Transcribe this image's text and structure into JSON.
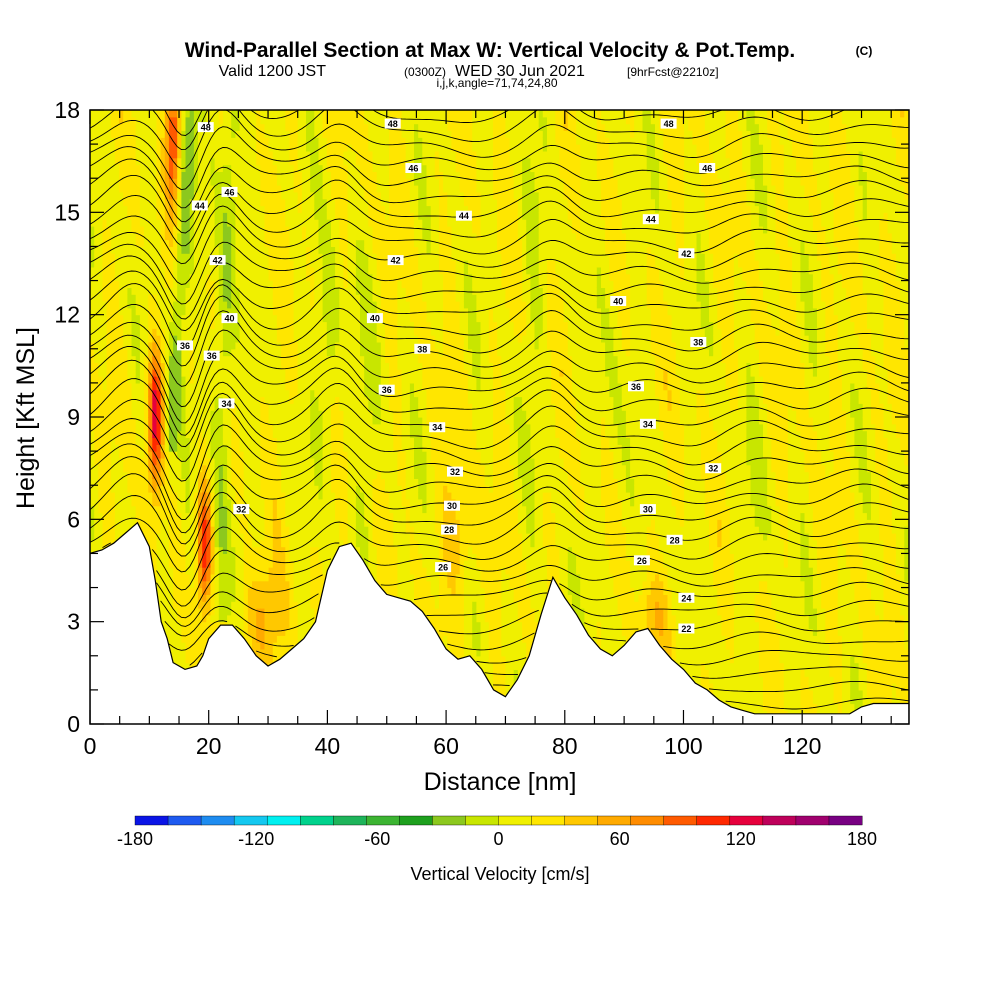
{
  "header": {
    "title": "Wind-Parallel Section at Max W: Vertical Velocity & Pot.Temp.",
    "copyright": "(C)",
    "valid_prefix": "Valid 1200 JST",
    "valid_utc": "(0300Z)",
    "valid_date": "WED 30 Jun 2021",
    "forecast": "[9hrFcst@2210z]",
    "indices": "i,j,k,angle=71,74,24,80"
  },
  "chart_data": {
    "type": "heatmap",
    "xlabel": "Distance [nm]",
    "ylabel": "Height [Kft MSL]",
    "xlim": [
      0,
      138
    ],
    "ylim": [
      0,
      18
    ],
    "x_ticks": [
      0,
      20,
      40,
      60,
      80,
      100,
      120
    ],
    "y_ticks": [
      0,
      3,
      6,
      9,
      12,
      15,
      18
    ],
    "x_minor_step": 5,
    "y_minor_step": 1,
    "colorbar": {
      "label": "Vertical Velocity [cm/s]",
      "range": [
        -180,
        180
      ],
      "ticks": [
        -180,
        -120,
        -60,
        0,
        60,
        120,
        180
      ],
      "colors": [
        "#0a14e6",
        "#1e5af0",
        "#1e8cf0",
        "#14c8f0",
        "#00f0f0",
        "#00d28c",
        "#1eb45a",
        "#3cb432",
        "#1ea01e",
        "#8cc81e",
        "#c8e600",
        "#f0f000",
        "#ffe600",
        "#ffc800",
        "#ffaa00",
        "#ff8c00",
        "#ff5a00",
        "#ff2800",
        "#e6003c",
        "#be005a",
        "#a0006e",
        "#780082"
      ]
    },
    "terrain_profile": [
      [
        0,
        5.0
      ],
      [
        2,
        5.1
      ],
      [
        4,
        5.3
      ],
      [
        6,
        5.6
      ],
      [
        8,
        5.9
      ],
      [
        10,
        5.2
      ],
      [
        11,
        4.2
      ],
      [
        12,
        3.0
      ],
      [
        13,
        2.5
      ],
      [
        14,
        1.8
      ],
      [
        16,
        1.6
      ],
      [
        18,
        1.7
      ],
      [
        19,
        2.0
      ],
      [
        20,
        2.5
      ],
      [
        22,
        2.9
      ],
      [
        24,
        2.9
      ],
      [
        26,
        2.5
      ],
      [
        28,
        2.0
      ],
      [
        30,
        1.7
      ],
      [
        32,
        1.9
      ],
      [
        34,
        2.2
      ],
      [
        36,
        2.5
      ],
      [
        38,
        3.0
      ],
      [
        40,
        4.5
      ],
      [
        42,
        5.2
      ],
      [
        44,
        5.3
      ],
      [
        46,
        4.8
      ],
      [
        48,
        4.2
      ],
      [
        50,
        3.8
      ],
      [
        52,
        3.7
      ],
      [
        54,
        3.6
      ],
      [
        56,
        3.3
      ],
      [
        58,
        2.8
      ],
      [
        60,
        2.2
      ],
      [
        62,
        1.9
      ],
      [
        64,
        2.0
      ],
      [
        66,
        1.6
      ],
      [
        68,
        1.0
      ],
      [
        70,
        0.8
      ],
      [
        72,
        1.3
      ],
      [
        74,
        2.0
      ],
      [
        76,
        3.2
      ],
      [
        78,
        4.3
      ],
      [
        80,
        3.7
      ],
      [
        82,
        3.2
      ],
      [
        84,
        2.6
      ],
      [
        86,
        2.2
      ],
      [
        88,
        2.0
      ],
      [
        90,
        2.3
      ],
      [
        92,
        2.7
      ],
      [
        94,
        2.8
      ],
      [
        96,
        2.3
      ],
      [
        98,
        1.9
      ],
      [
        100,
        1.6
      ],
      [
        102,
        1.2
      ],
      [
        104,
        1.0
      ],
      [
        106,
        0.7
      ],
      [
        108,
        0.5
      ],
      [
        110,
        0.4
      ],
      [
        112,
        0.3
      ],
      [
        120,
        0.3
      ],
      [
        128,
        0.3
      ],
      [
        130,
        0.5
      ],
      [
        132,
        0.6
      ],
      [
        138,
        0.6
      ]
    ],
    "theta_contour_labels": [
      {
        "text": "22",
        "x": 100.5,
        "y": 2.8
      },
      {
        "text": "24",
        "x": 100.5,
        "y": 3.7
      },
      {
        "text": "26",
        "x": 59.5,
        "y": 4.6
      },
      {
        "text": "26",
        "x": 93.0,
        "y": 4.8
      },
      {
        "text": "28",
        "x": 60.5,
        "y": 5.7
      },
      {
        "text": "28",
        "x": 98.5,
        "y": 5.4
      },
      {
        "text": "30",
        "x": 61.0,
        "y": 6.4
      },
      {
        "text": "30",
        "x": 94.0,
        "y": 6.3
      },
      {
        "text": "32",
        "x": 25.5,
        "y": 6.3
      },
      {
        "text": "32",
        "x": 61.5,
        "y": 7.4
      },
      {
        "text": "32",
        "x": 105.0,
        "y": 7.5
      },
      {
        "text": "34",
        "x": 23.0,
        "y": 9.4
      },
      {
        "text": "34",
        "x": 58.5,
        "y": 8.7
      },
      {
        "text": "34",
        "x": 94.0,
        "y": 8.8
      },
      {
        "text": "36",
        "x": 16.0,
        "y": 11.1
      },
      {
        "text": "36",
        "x": 20.5,
        "y": 10.8
      },
      {
        "text": "36",
        "x": 50.0,
        "y": 9.8
      },
      {
        "text": "36",
        "x": 92.0,
        "y": 9.9
      },
      {
        "text": "38",
        "x": 56.0,
        "y": 11.0
      },
      {
        "text": "38",
        "x": 102.5,
        "y": 11.2
      },
      {
        "text": "40",
        "x": 23.5,
        "y": 11.9
      },
      {
        "text": "40",
        "x": 48.0,
        "y": 11.9
      },
      {
        "text": "40",
        "x": 89.0,
        "y": 12.4
      },
      {
        "text": "42",
        "x": 21.5,
        "y": 13.6
      },
      {
        "text": "42",
        "x": 51.5,
        "y": 13.6
      },
      {
        "text": "42",
        "x": 100.5,
        "y": 13.8
      },
      {
        "text": "44",
        "x": 18.5,
        "y": 15.2
      },
      {
        "text": "44",
        "x": 63.0,
        "y": 14.9
      },
      {
        "text": "44",
        "x": 94.5,
        "y": 14.8
      },
      {
        "text": "46",
        "x": 23.5,
        "y": 15.6
      },
      {
        "text": "46",
        "x": 54.5,
        "y": 16.3
      },
      {
        "text": "46",
        "x": 104.0,
        "y": 16.3
      },
      {
        "text": "48",
        "x": 19.5,
        "y": 17.5
      },
      {
        "text": "48",
        "x": 51.0,
        "y": 17.6
      },
      {
        "text": "48",
        "x": 97.5,
        "y": 17.6
      }
    ]
  }
}
